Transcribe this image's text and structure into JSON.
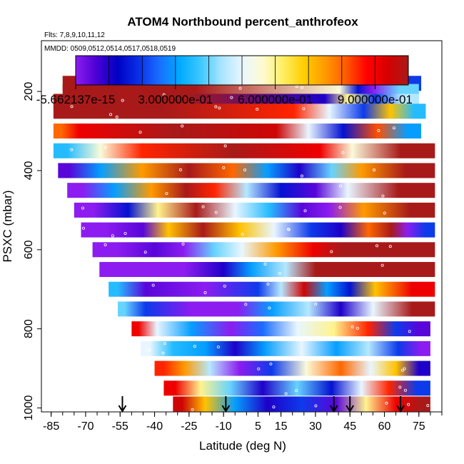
{
  "chart_data": {
    "type": "heatmap",
    "title": "ATOM4 Northbound percent_anthrofeox",
    "flights_note": "Flts: 7,8,9,10,11,12",
    "dates_note": "MMDD: 0509,0512,0514,0517,0518,0519",
    "xlabel": "Latitude (deg N)",
    "ylabel": "PSXC (mbar)",
    "xlim": [
      -88,
      85
    ],
    "ylim": [
      1010,
      50
    ],
    "y_reversed": true,
    "x_ticks": [
      -85,
      -70,
      -55,
      -40,
      -25,
      -10,
      5,
      15,
      30,
      45,
      60,
      75
    ],
    "x_tick_labels": [
      "-85",
      "-70",
      "-55",
      "-40",
      "-25",
      "-10",
      "5",
      "15",
      "30",
      "45",
      "60",
      "75"
    ],
    "y_ticks": [
      200,
      400,
      600,
      800,
      1000
    ],
    "y_tick_labels": [
      "200",
      "400",
      "600",
      "800",
      "1000"
    ],
    "colorbar": {
      "min": -5.662137e-15,
      "max": 1.0,
      "tick_values": [
        0,
        0.3,
        0.6,
        0.9
      ],
      "tick_labels": [
        "-5.662137e-15",
        "3.000000e-01",
        "6.000000e-01",
        "9.000000e-01"
      ],
      "colors": [
        "#8c1cf0",
        "#4b00d4",
        "#0000c4",
        "#0a2ee6",
        "#1a6cff",
        "#00aaff",
        "#3cc8ff",
        "#a8e4ff",
        "#e8f6ff",
        "#fffbd0",
        "#ffee60",
        "#ffcc00",
        "#ff9a00",
        "#ff5a00",
        "#ff0000",
        "#d80000",
        "#a81a1a"
      ]
    },
    "flight_markers_lat": [
      -54,
      -9,
      38,
      45,
      67
    ],
    "bands": [
      {
        "p": 175,
        "segments": [
          [
            -80,
            74,
            1.0
          ],
          [
            74,
            76,
            0.2
          ]
        ]
      },
      {
        "p": 200,
        "segments": [
          [
            -80,
            36,
            1.0
          ],
          [
            36,
            45,
            0.55
          ],
          [
            45,
            52,
            0.15
          ],
          [
            52,
            58,
            0.0
          ],
          [
            58,
            75,
            0.4
          ]
        ]
      },
      {
        "p": 225,
        "segments": [
          [
            -84,
            32,
            1.0
          ],
          [
            32,
            36,
            0.1
          ],
          [
            36,
            52,
            0.6
          ],
          [
            52,
            60,
            0.2
          ],
          [
            60,
            75,
            0.45
          ]
        ]
      },
      {
        "p": 250,
        "segments": [
          [
            -84,
            14,
            1.0
          ],
          [
            14,
            27,
            0.85
          ],
          [
            27,
            45,
            0.5
          ],
          [
            45,
            57,
            0.2
          ],
          [
            57,
            68,
            0.7
          ],
          [
            68,
            78,
            0.35
          ]
        ]
      },
      {
        "p": 300,
        "segments": [
          [
            -84,
            -77,
            0.8
          ],
          [
            -77,
            -69,
            0.9
          ],
          [
            -69,
            6,
            1.0
          ],
          [
            6,
            20,
            0.95
          ],
          [
            20,
            34,
            0.5
          ],
          [
            34,
            50,
            0.15
          ],
          [
            50,
            64,
            0.82
          ],
          [
            64,
            76,
            0.3
          ]
        ]
      },
      {
        "p": 350,
        "segments": [
          [
            -84,
            -72,
            0.35
          ],
          [
            -72,
            -55,
            0.55
          ],
          [
            -55,
            -36,
            0.85
          ],
          [
            -36,
            24,
            1.0
          ],
          [
            24,
            40,
            0.9
          ],
          [
            40,
            52,
            0.55
          ],
          [
            52,
            82,
            1.0
          ]
        ]
      },
      {
        "p": 400,
        "segments": [
          [
            -82,
            -72,
            0.05
          ],
          [
            -72,
            -55,
            0.3
          ],
          [
            -55,
            -36,
            0.75
          ],
          [
            -36,
            -14,
            1.0
          ],
          [
            -14,
            2,
            0.8
          ],
          [
            2,
            16,
            0.3
          ],
          [
            16,
            30,
            0.1
          ],
          [
            30,
            44,
            0.4
          ],
          [
            44,
            56,
            0.75
          ],
          [
            56,
            82,
            1.0
          ]
        ]
      },
      {
        "p": 450,
        "segments": [
          [
            -78,
            -65,
            0.0
          ],
          [
            -65,
            -50,
            0.3
          ],
          [
            -50,
            -33,
            0.75
          ],
          [
            -33,
            -20,
            1.0
          ],
          [
            -20,
            -8,
            0.85
          ],
          [
            -8,
            8,
            0.45
          ],
          [
            8,
            22,
            0.15
          ],
          [
            22,
            38,
            0.05
          ],
          [
            38,
            50,
            0.5
          ],
          [
            50,
            82,
            1.0
          ]
        ]
      },
      {
        "p": 500,
        "segments": [
          [
            -75,
            -58,
            0.0
          ],
          [
            -58,
            -45,
            0.15
          ],
          [
            -45,
            -32,
            0.6
          ],
          [
            -32,
            -12,
            1.0
          ],
          [
            -12,
            2,
            0.5
          ],
          [
            2,
            18,
            0.35
          ],
          [
            18,
            30,
            0.05
          ],
          [
            30,
            42,
            0.0
          ],
          [
            42,
            60,
            0.75
          ],
          [
            60,
            82,
            1.0
          ]
        ]
      },
      {
        "p": 550,
        "segments": [
          [
            -72,
            -50,
            0.0
          ],
          [
            -50,
            -40,
            0.05
          ],
          [
            -40,
            -28,
            0.7
          ],
          [
            -28,
            -10,
            1.0
          ],
          [
            -10,
            4,
            0.7
          ],
          [
            4,
            20,
            0.5
          ],
          [
            20,
            36,
            0.2
          ],
          [
            36,
            46,
            0.1
          ],
          [
            46,
            60,
            0.8
          ],
          [
            60,
            66,
            1.0
          ],
          [
            66,
            74,
            0.0
          ],
          [
            74,
            82,
            0.2
          ]
        ]
      },
      {
        "p": 600,
        "segments": [
          [
            -67,
            -45,
            0.0
          ],
          [
            -45,
            -35,
            0.05
          ],
          [
            -35,
            -20,
            0.0
          ],
          [
            -20,
            -8,
            0.4
          ],
          [
            -8,
            4,
            0.5
          ],
          [
            4,
            22,
            0.75
          ],
          [
            22,
            36,
            0.9
          ],
          [
            36,
            46,
            1.0
          ],
          [
            46,
            82,
            1.0
          ]
        ]
      },
      {
        "p": 650,
        "segments": [
          [
            -64,
            -40,
            0.0
          ],
          [
            -40,
            -14,
            0.0
          ],
          [
            -14,
            -6,
            0.1
          ],
          [
            -6,
            10,
            0.3
          ],
          [
            10,
            24,
            0.45
          ],
          [
            24,
            36,
            1.0
          ],
          [
            36,
            82,
            1.0
          ]
        ]
      },
      {
        "p": 700,
        "segments": [
          [
            -60,
            -52,
            0.35
          ],
          [
            -52,
            -36,
            0.05
          ],
          [
            -36,
            0,
            0.0
          ],
          [
            0,
            10,
            0.2
          ],
          [
            10,
            20,
            0.45
          ],
          [
            20,
            30,
            0.95
          ],
          [
            30,
            40,
            0.3
          ],
          [
            40,
            50,
            0.15
          ],
          [
            50,
            62,
            0.7
          ],
          [
            62,
            82,
            0.9
          ]
        ]
      },
      {
        "p": 750,
        "segments": [
          [
            -56,
            -50,
            0.4
          ],
          [
            -50,
            -38,
            0.2
          ],
          [
            -38,
            -10,
            0.0
          ],
          [
            -10,
            2,
            0.0
          ],
          [
            2,
            20,
            0.3
          ],
          [
            20,
            34,
            0.45
          ],
          [
            34,
            48,
            0.1
          ],
          [
            48,
            62,
            0.5
          ],
          [
            62,
            82,
            1.0
          ]
        ]
      },
      {
        "p": 800,
        "segments": [
          [
            -50,
            -44,
            0.9
          ],
          [
            -44,
            -34,
            0.5
          ],
          [
            -34,
            -14,
            0.3
          ],
          [
            -14,
            0,
            0.0
          ],
          [
            0,
            14,
            0.25
          ],
          [
            14,
            30,
            0.5
          ],
          [
            30,
            46,
            0.6
          ],
          [
            46,
            60,
            0.85
          ],
          [
            60,
            70,
            0.2
          ],
          [
            70,
            80,
            0.05
          ]
        ]
      },
      {
        "p": 850,
        "segments": [
          [
            -46,
            -38,
            0.5
          ],
          [
            -38,
            -26,
            0.35
          ],
          [
            -26,
            -10,
            0.3
          ],
          [
            -10,
            0,
            0.1
          ],
          [
            0,
            16,
            0.3
          ],
          [
            16,
            32,
            0.5
          ],
          [
            32,
            46,
            0.3
          ],
          [
            46,
            60,
            0.45
          ],
          [
            60,
            72,
            0.2
          ],
          [
            72,
            80,
            0.0
          ]
        ]
      },
      {
        "p": 900,
        "segments": [
          [
            -40,
            -32,
            0.85
          ],
          [
            -32,
            -22,
            0.75
          ],
          [
            -22,
            -10,
            0.45
          ],
          [
            -10,
            4,
            0.0
          ],
          [
            4,
            18,
            0.2
          ],
          [
            18,
            34,
            0.55
          ],
          [
            34,
            48,
            0.8
          ],
          [
            48,
            60,
            0.5
          ],
          [
            60,
            70,
            0.7
          ],
          [
            70,
            80,
            0.1
          ]
        ]
      },
      {
        "p": 950,
        "segments": [
          [
            -36,
            -26,
            0.9
          ],
          [
            -26,
            -14,
            0.6
          ],
          [
            -14,
            0,
            0.4
          ],
          [
            0,
            14,
            0.1
          ],
          [
            14,
            30,
            0.4
          ],
          [
            30,
            44,
            0.15
          ],
          [
            44,
            56,
            0.5
          ],
          [
            56,
            68,
            0.85
          ],
          [
            68,
            80,
            0.2
          ]
        ]
      },
      {
        "p": 990,
        "segments": [
          [
            -32,
            -24,
            0.95
          ],
          [
            -24,
            -12,
            0.7
          ],
          [
            -12,
            2,
            0.3
          ],
          [
            2,
            16,
            0.1
          ],
          [
            16,
            32,
            0.2
          ],
          [
            32,
            46,
            0.05
          ],
          [
            46,
            58,
            0.6
          ],
          [
            58,
            72,
            0.9
          ],
          [
            72,
            80,
            1.0
          ]
        ]
      }
    ]
  }
}
